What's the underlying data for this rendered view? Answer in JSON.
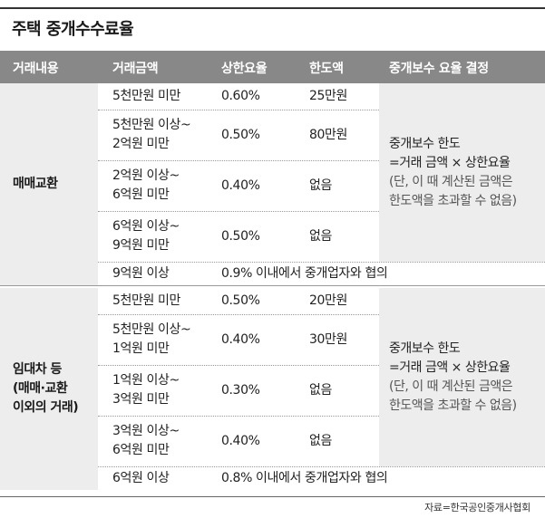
{
  "title": "주택 중개수수료율",
  "headers": [
    "거래내용",
    "거래금액",
    "상한요율",
    "한도액",
    "중개보수 요율 결정"
  ],
  "groups": [
    {
      "label": [
        "매매교환"
      ],
      "rows": [
        {
          "amount": [
            "5천만원 미만"
          ],
          "rate": "0.60%",
          "cap": "25만원"
        },
        {
          "amount": [
            "5천만원 이상~",
            "2억원 미만"
          ],
          "rate": "0.50%",
          "cap": "80만원"
        },
        {
          "amount": [
            "2억원 이상~",
            "6억원 미만"
          ],
          "rate": "0.40%",
          "cap": "없음"
        },
        {
          "amount": [
            "6억원 이상~",
            "9억원 미만"
          ],
          "rate": "0.50%",
          "cap": "없음"
        }
      ],
      "final": {
        "amount": "9억원 이상",
        "note": "0.9% 이내에서 중개업자와 협의"
      },
      "rule": [
        "중개보수 한도",
        "=거래 금액 × 상한요율",
        "(단, 이 때 계산된 금액은",
        "한도액을 초과할 수 없음)"
      ]
    },
    {
      "label": [
        "임대차 등",
        "(매매·교환",
        "이외의 거래)"
      ],
      "rows": [
        {
          "amount": [
            "5천만원 미만"
          ],
          "rate": "0.50%",
          "cap": "20만원"
        },
        {
          "amount": [
            "5천만원 이상~",
            "1억원 미만"
          ],
          "rate": "0.40%",
          "cap": "30만원"
        },
        {
          "amount": [
            "1억원 이상~",
            "3억원 미만"
          ],
          "rate": "0.30%",
          "cap": "없음"
        },
        {
          "amount": [
            "3억원 이상~",
            "6억원 미만"
          ],
          "rate": "0.40%",
          "cap": "없음"
        }
      ],
      "final": {
        "amount": "6억원 이상",
        "note": "0.8% 이내에서 중개업자와 협의"
      },
      "rule": [
        "중개보수 한도",
        "=거래 금액 × 상한요율",
        "(단, 이 때 계산된 금액은",
        "한도액을 초과할 수 없음)"
      ]
    }
  ],
  "source": "자료=한국공인중개사협회"
}
